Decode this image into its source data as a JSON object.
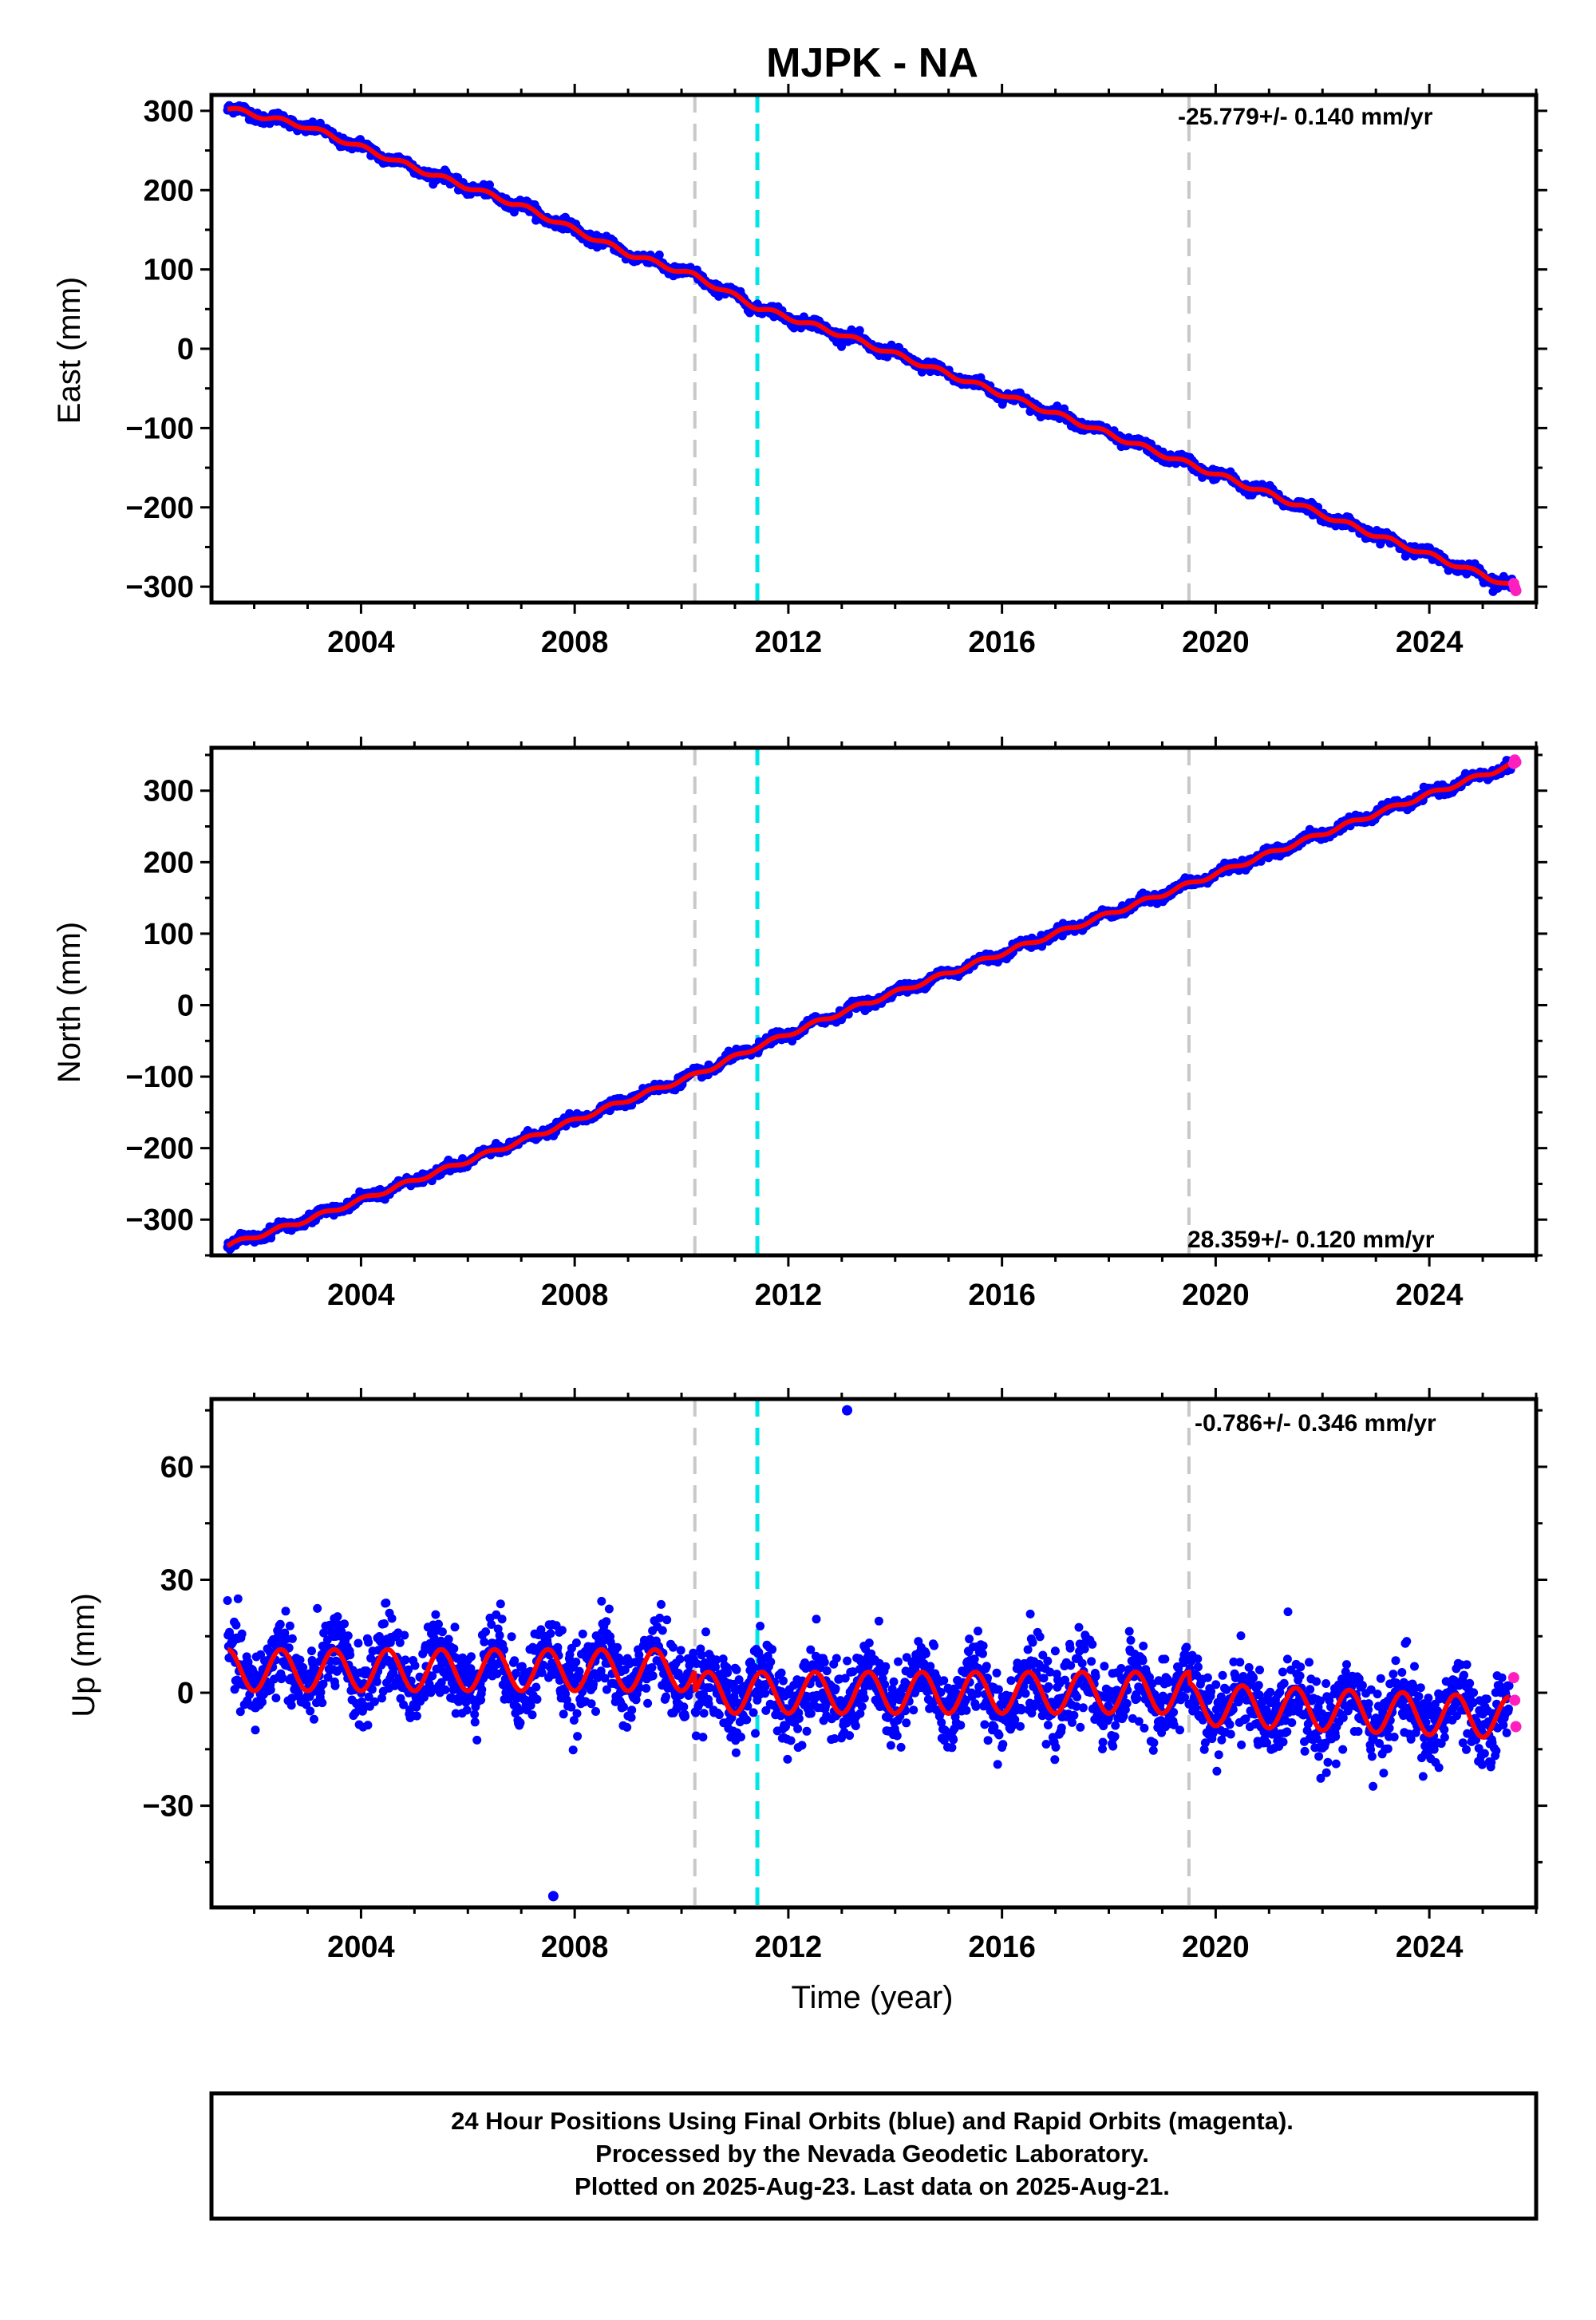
{
  "title": "MJPK - NA",
  "colors": {
    "final_orbits": "#0000ff",
    "rapid_orbits": "#ff1fbf",
    "model": "#ff0000",
    "event_gray": "#c8c8c8",
    "event_cyan": "#00e5e5"
  },
  "chart_data": [
    {
      "type": "scatter",
      "ylabel": "East (mm)",
      "xlabel": "",
      "rate_label": "-25.779+/- 0.140 mm/yr",
      "xlim": [
        2001.2,
        2026.0
      ],
      "ylim": [
        -320,
        320
      ],
      "xticks": [
        2004,
        2008,
        2012,
        2016,
        2020,
        2024
      ],
      "yticks": [
        300,
        200,
        100,
        0,
        -100,
        -200,
        -300
      ],
      "events": [
        {
          "x": 2010.25,
          "color": "gray"
        },
        {
          "x": 2011.42,
          "color": "cyan"
        },
        {
          "x": 2019.5,
          "color": "gray"
        }
      ],
      "series": [
        {
          "color": "blue",
          "x": [
            2001.5,
            2003.0,
            2005.0,
            2007.0,
            2009.0,
            2010.25,
            2011.42,
            2013.0,
            2015.0,
            2017.0,
            2019.0,
            2021.0,
            2023.0,
            2025.0,
            2025.55
          ],
          "y": [
            303,
            280,
            228,
            180,
            120,
            92,
            52,
            18,
            -32,
            -82,
            -133,
            -183,
            -235,
            -285,
            -300
          ]
        },
        {
          "color": "magenta",
          "x": [
            2025.58,
            2025.6,
            2025.62
          ],
          "y": [
            -296,
            -301,
            -305
          ]
        }
      ],
      "gridlines": false
    },
    {
      "type": "scatter",
      "ylabel": "North (mm)",
      "xlabel": "",
      "rate_label": "28.359+/- 0.120 mm/yr",
      "xlim": [
        2001.2,
        2026.0
      ],
      "ylim": [
        -350,
        360
      ],
      "xticks": [
        2004,
        2008,
        2012,
        2016,
        2020,
        2024
      ],
      "yticks": [
        300,
        200,
        100,
        0,
        -100,
        -200,
        -300
      ],
      "events": [
        {
          "x": 2010.25,
          "color": "gray"
        },
        {
          "x": 2011.42,
          "color": "cyan"
        },
        {
          "x": 2019.5,
          "color": "gray"
        }
      ],
      "series": [
        {
          "color": "blue",
          "x": [
            2001.5,
            2003.0,
            2005.0,
            2007.0,
            2009.0,
            2010.25,
            2011.42,
            2013.0,
            2015.0,
            2017.0,
            2019.0,
            2021.0,
            2023.0,
            2025.0,
            2025.55
          ],
          "y": [
            -336,
            -300,
            -245,
            -190,
            -132,
            -98,
            -58,
            -10,
            45,
            100,
            155,
            212,
            268,
            322,
            336
          ]
        },
        {
          "color": "magenta",
          "x": [
            2025.58,
            2025.6,
            2025.62
          ],
          "y": [
            338,
            343,
            340
          ]
        }
      ],
      "gridlines": false
    },
    {
      "type": "scatter",
      "ylabel": "Up (mm)",
      "xlabel": "Time (year)",
      "rate_label": "-0.786+/- 0.346 mm/yr",
      "xlim": [
        2001.2,
        2026.0
      ],
      "ylim": [
        -57,
        78
      ],
      "xticks": [
        2004,
        2008,
        2012,
        2016,
        2020,
        2024
      ],
      "yticks": [
        60,
        30,
        0,
        -30
      ],
      "events": [
        {
          "x": 2010.25,
          "color": "gray"
        },
        {
          "x": 2011.42,
          "color": "cyan"
        },
        {
          "x": 2019.5,
          "color": "gray"
        }
      ],
      "model_amplitude_mm": 5.5,
      "model_offset_before_2010_25": 6,
      "model_offset_after_2010_25": 0,
      "model_offset_after_2019_5": -3,
      "outliers": [
        {
          "x": 2007.6,
          "y": -54
        },
        {
          "x": 2013.1,
          "y": 75
        }
      ],
      "series": [
        {
          "color": "blue",
          "x": [
            2001.5,
            2004.0,
            2008.0,
            2010.25,
            2012.0,
            2016.0,
            2019.5,
            2022.0,
            2025.5
          ],
          "y": [
            6,
            6,
            4,
            0,
            0,
            -1,
            -3,
            -4,
            -6
          ]
        },
        {
          "color": "magenta",
          "x": [
            2025.58,
            2025.6,
            2025.62
          ],
          "y": [
            4,
            -2,
            -9
          ]
        }
      ],
      "gridlines": false
    }
  ],
  "footer": {
    "line1": "24 Hour Positions Using Final Orbits (blue) and Rapid Orbits (magenta).",
    "line2": "Processed by the Nevada Geodetic Laboratory.",
    "line3": "Plotted on 2025-Aug-23. Last data on 2025-Aug-21."
  }
}
